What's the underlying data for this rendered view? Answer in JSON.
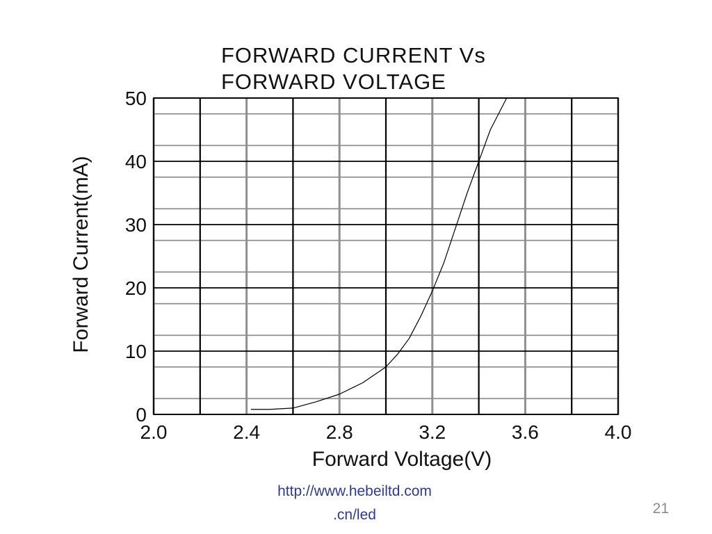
{
  "chart_data": {
    "type": "line",
    "title_lines": [
      "FORWARD CURRENT Vs",
      "FORWARD VOLTAGE"
    ],
    "xlabel": "Forward Voltage(V)",
    "ylabel": "Forward Current(mA)",
    "xlim": [
      2.0,
      4.0
    ],
    "ylim": [
      0,
      50
    ],
    "x_ticks": [
      "2.0",
      "2.4",
      "2.8",
      "3.2",
      "3.6",
      "4.0"
    ],
    "y_ticks": [
      "0",
      "10",
      "20",
      "30",
      "40",
      "50"
    ],
    "grid": true,
    "series": [
      {
        "x": [
          2.42,
          2.5,
          2.6,
          2.7,
          2.8,
          2.9,
          3.0,
          3.05,
          3.1,
          3.15,
          3.2,
          3.25,
          3.3,
          3.35,
          3.4,
          3.45,
          3.52
        ],
        "y": [
          0.8,
          0.8,
          1.0,
          2.0,
          3.2,
          5.0,
          7.5,
          9.5,
          12.0,
          15.5,
          19.5,
          24.0,
          29.5,
          35.0,
          40.0,
          45.0,
          50.0
        ]
      }
    ]
  },
  "footer": {
    "link_line1": "http://www.hebeiltd.com",
    "link_line2": ".cn/led",
    "page_number": "21"
  },
  "colors": {
    "grid_major": "#000000",
    "grid_minor": "#8f8f8f",
    "curve": "#000000",
    "link": "#2f3a8f",
    "page_number": "#8a8a8a"
  }
}
